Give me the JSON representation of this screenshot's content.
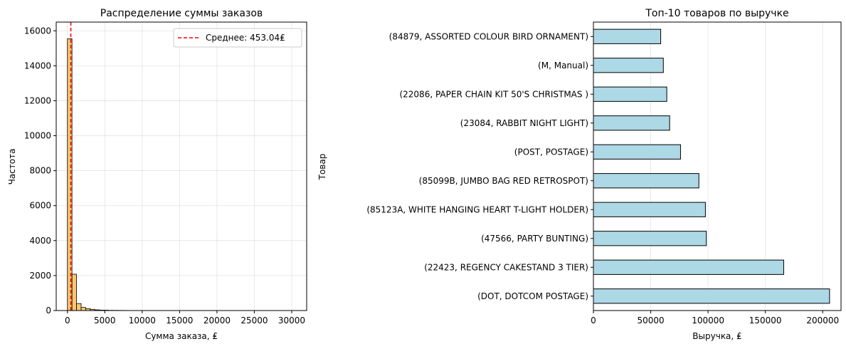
{
  "chart_data": [
    {
      "type": "bar",
      "subtype": "histogram",
      "title": "Распределение суммы заказов",
      "xlabel": "Сумма заказа, ₤",
      "ylabel": "Частота",
      "xlim": [
        -1500,
        32000
      ],
      "ylim": [
        0,
        16500
      ],
      "xticks": [
        0,
        5000,
        10000,
        15000,
        20000,
        25000,
        30000
      ],
      "yticks": [
        0,
        2000,
        4000,
        6000,
        8000,
        10000,
        12000,
        14000,
        16000
      ],
      "grid": true,
      "bar_color": "#f5b642",
      "edge_color": "#000000",
      "bin_width": 610,
      "bins": [
        {
          "x0": 0,
          "value": 15550
        },
        {
          "x0": 610,
          "value": 2080
        },
        {
          "x0": 1220,
          "value": 400
        },
        {
          "x0": 1830,
          "value": 180
        },
        {
          "x0": 2440,
          "value": 110
        },
        {
          "x0": 3050,
          "value": 70
        },
        {
          "x0": 3660,
          "value": 40
        },
        {
          "x0": 4270,
          "value": 25
        },
        {
          "x0": 4880,
          "value": 20
        },
        {
          "x0": 5490,
          "value": 12
        },
        {
          "x0": 6100,
          "value": 10
        },
        {
          "x0": 6710,
          "value": 8
        },
        {
          "x0": 7320,
          "value": 6
        },
        {
          "x0": 7930,
          "value": 5
        },
        {
          "x0": 8540,
          "value": 4
        },
        {
          "x0": 9150,
          "value": 3
        },
        {
          "x0": 9760,
          "value": 3
        },
        {
          "x0": 10370,
          "value": 2
        },
        {
          "x0": 10980,
          "value": 2
        },
        {
          "x0": 11590,
          "value": 2
        },
        {
          "x0": 12200,
          "value": 1
        },
        {
          "x0": 12810,
          "value": 1
        },
        {
          "x0": 13420,
          "value": 1
        },
        {
          "x0": 14030,
          "value": 1
        }
      ],
      "mean_line": {
        "value": 453.04,
        "color": "#ff0000",
        "label": "Среднее: 453.04₤"
      },
      "legend_position": "top-right"
    },
    {
      "type": "bar",
      "orientation": "horizontal",
      "title": "Топ-10 товаров по выручке",
      "xlabel": "Выручка, ₤",
      "ylabel": "Товар",
      "xlim": [
        0,
        216000
      ],
      "xticks": [
        0,
        50000,
        100000,
        150000,
        200000
      ],
      "grid": true,
      "bar_color": "#add8e6",
      "edge_color": "#000000",
      "categories": [
        "(DOT, DOTCOM POSTAGE)",
        "(22423, REGENCY CAKESTAND 3 TIER)",
        "(47566, PARTY BUNTING)",
        "(85123A, WHITE HANGING HEART T-LIGHT HOLDER)",
        "(85099B, JUMBO BAG RED RETROSPOT)",
        "(POST, POSTAGE)",
        "(23084, RABBIT NIGHT LIGHT)",
        "(22086, PAPER CHAIN KIT 50'S CHRISTMAS )",
        "(M, Manual)",
        "(84879, ASSORTED COLOUR BIRD ORNAMENT)"
      ],
      "values": [
        206000,
        166000,
        98500,
        97700,
        92000,
        76000,
        66500,
        64000,
        61000,
        58700
      ]
    }
  ]
}
